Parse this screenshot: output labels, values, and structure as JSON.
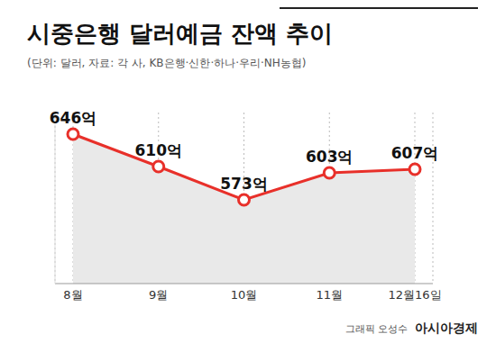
{
  "chart_data": {
    "type": "line",
    "title": "시중은행 달러예금 잔액 추이",
    "subtitle": "(단위: 달러, 자료: 각 사, KB은행·신한·하나·우리·NH농협)",
    "categories": [
      "8월",
      "9월",
      "10월",
      "11월",
      "12월16일"
    ],
    "values": [
      646,
      610,
      573,
      603,
      607
    ],
    "value_labels": [
      "646억",
      "610억",
      "573억",
      "603억",
      "607억"
    ],
    "color": "#e8302a",
    "ylim": [
      480,
      670
    ],
    "tick_labels": "x",
    "grid": true,
    "data_labels": true,
    "marker": "circle",
    "annotations": [
      "그래픽 오성수",
      "아시아경제"
    ]
  }
}
